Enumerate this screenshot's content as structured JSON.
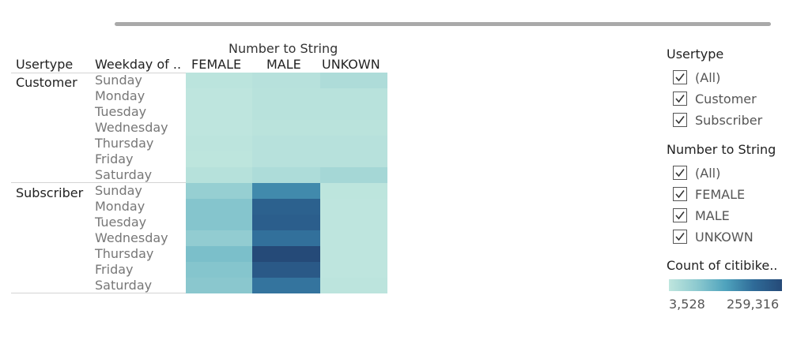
{
  "header": {
    "column_group_title": "Number to String",
    "row_headers": [
      "Usertype",
      "Weekday of .."
    ],
    "column_headers": [
      "FEMALE",
      "MALE",
      "UNKOWN"
    ]
  },
  "row_groups": [
    {
      "usertype": "Customer",
      "weekdays": [
        "Sunday",
        "Monday",
        "Tuesday",
        "Wednesday",
        "Thursday",
        "Friday",
        "Saturday"
      ]
    },
    {
      "usertype": "Subscriber",
      "weekdays": [
        "Sunday",
        "Monday",
        "Tuesday",
        "Wednesday",
        "Thursday",
        "Friday",
        "Saturday"
      ]
    }
  ],
  "filters": [
    {
      "title": "Usertype",
      "items": [
        "(All)",
        "Customer",
        "Subscriber"
      ]
    },
    {
      "title": "Number to String",
      "items": [
        "(All)",
        "FEMALE",
        "MALE",
        "UNKOWN"
      ]
    }
  ],
  "color_legend": {
    "title": "Count of citibike..",
    "min_label": "3,528",
    "max_label": "259,316",
    "min": 3528,
    "max": 259316,
    "colors": [
      "#bfe6de",
      "#8cc9cf",
      "#4fa3bd",
      "#2f6b98",
      "#254a78"
    ]
  },
  "chart_data": {
    "type": "heatmap",
    "title": "Number to String",
    "x_categories": [
      "FEMALE",
      "MALE",
      "UNKOWN"
    ],
    "y_groups": [
      "Customer",
      "Subscriber"
    ],
    "y_categories": [
      "Sunday",
      "Monday",
      "Tuesday",
      "Wednesday",
      "Thursday",
      "Friday",
      "Saturday"
    ],
    "color_range": [
      3528,
      259316
    ],
    "values": [
      [
        8000,
        14000,
        25000
      ],
      [
        5000,
        12000,
        12000
      ],
      [
        5000,
        12000,
        12000
      ],
      [
        5000,
        10000,
        10000
      ],
      [
        7000,
        14000,
        14000
      ],
      [
        6000,
        14000,
        14000
      ],
      [
        15000,
        26000,
        36000
      ],
      [
        55000,
        160000,
        6000
      ],
      [
        75000,
        215000,
        5000
      ],
      [
        75000,
        220000,
        5000
      ],
      [
        60000,
        190000,
        5000
      ],
      [
        85000,
        259316,
        5000
      ],
      [
        75000,
        230000,
        5000
      ],
      [
        70000,
        185000,
        7000
      ]
    ]
  }
}
